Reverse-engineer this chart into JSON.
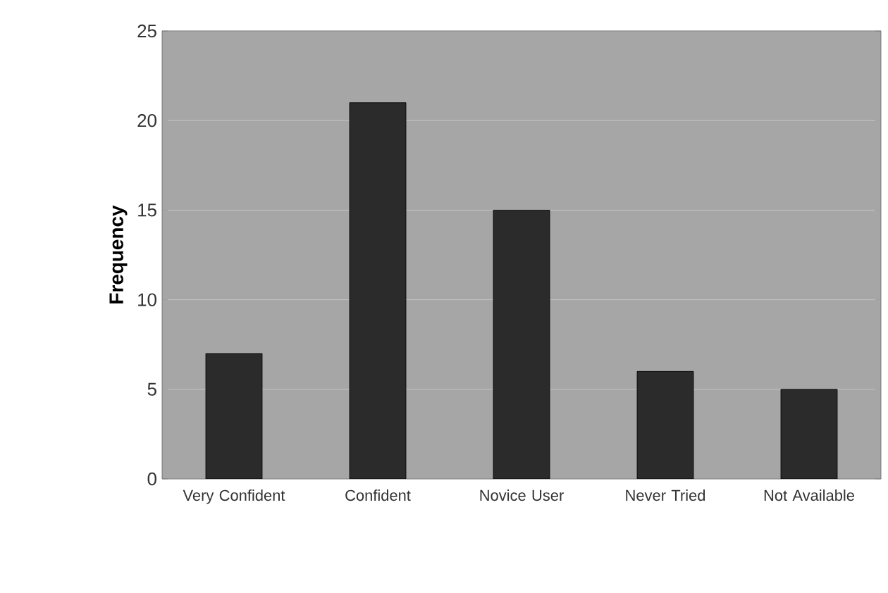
{
  "chart_data": {
    "type": "bar",
    "ylabel": "Frequency",
    "categories": [
      "Very Confident",
      "Confident",
      "Novice User",
      "Never Tried",
      "Not Available"
    ],
    "values": [
      7,
      21,
      15,
      6,
      5
    ],
    "color": "#2b2b2b",
    "ylim": [
      0,
      25
    ],
    "yticks": [
      0,
      5,
      10,
      15,
      20,
      25
    ],
    "grid": "y"
  }
}
